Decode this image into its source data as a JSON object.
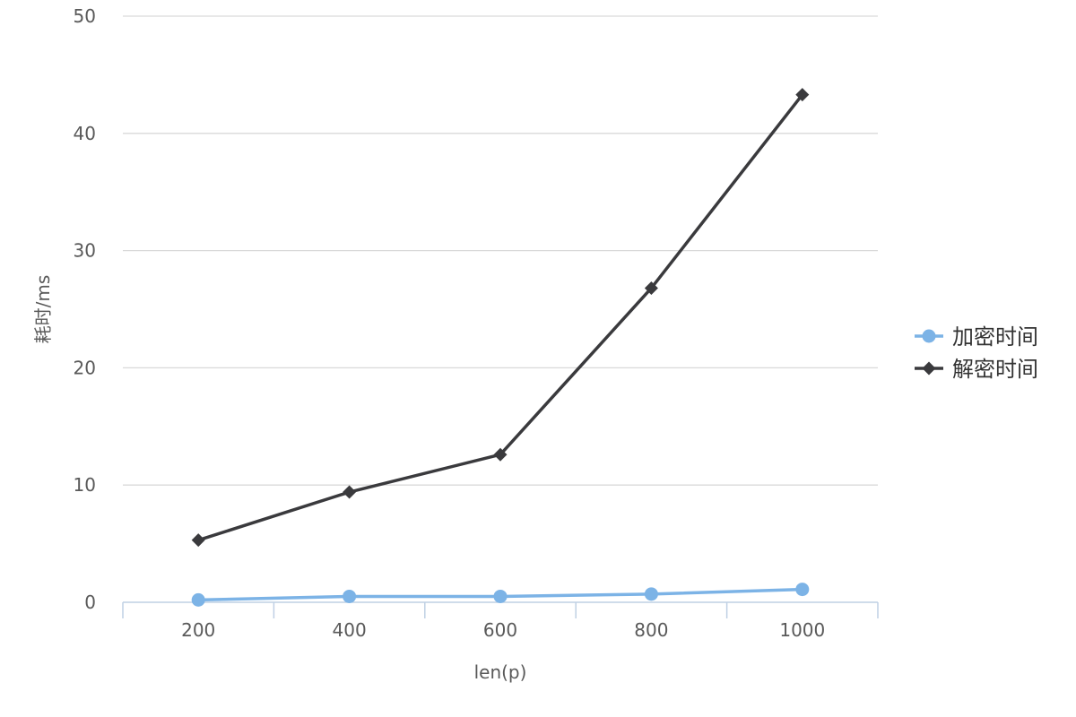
{
  "chart_data": {
    "type": "line",
    "categories": [
      "200",
      "400",
      "600",
      "800",
      "1000"
    ],
    "series": [
      {
        "name": "加密时间",
        "values": [
          0.2,
          0.5,
          0.5,
          0.7,
          1.1
        ],
        "color": "#7cb3e6",
        "marker": "circle"
      },
      {
        "name": "解密时间",
        "values": [
          5.3,
          9.4,
          12.6,
          26.8,
          43.3
        ],
        "color": "#3a3a3d",
        "marker": "diamond"
      }
    ],
    "title": "",
    "xlabel": "len(p)",
    "ylabel": "耗时/ms",
    "ylim": [
      0,
      50
    ],
    "yticks": [
      "0",
      "10",
      "20",
      "30",
      "40",
      "50"
    ],
    "grid": true,
    "legend_position": "right",
    "colors": {
      "grid": "#d9d9d9",
      "axis": "#bfd0e4",
      "text": "#595959"
    }
  }
}
